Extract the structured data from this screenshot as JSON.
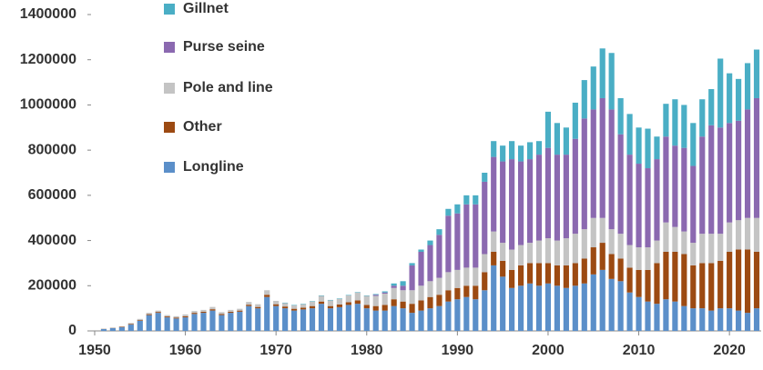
{
  "chart_data": {
    "type": "stacked_bar",
    "x": [
      1951,
      1952,
      1953,
      1954,
      1955,
      1956,
      1957,
      1958,
      1959,
      1960,
      1961,
      1962,
      1963,
      1964,
      1965,
      1966,
      1967,
      1968,
      1969,
      1970,
      1971,
      1972,
      1973,
      1974,
      1975,
      1976,
      1977,
      1978,
      1979,
      1980,
      1981,
      1982,
      1983,
      1984,
      1985,
      1986,
      1987,
      1988,
      1989,
      1990,
      1991,
      1992,
      1993,
      1994,
      1995,
      1996,
      1997,
      1998,
      1999,
      2000,
      2001,
      2002,
      2003,
      2004,
      2005,
      2006,
      2007,
      2008,
      2009,
      2010,
      2011,
      2012,
      2013,
      2014,
      2015,
      2016,
      2017,
      2018,
      2019,
      2020,
      2021,
      2022,
      2023
    ],
    "series": [
      {
        "name": "Longline",
        "color": "#5b8fc9",
        "values": [
          8000,
          12000,
          16000,
          28000,
          45000,
          70000,
          80000,
          60000,
          55000,
          60000,
          75000,
          80000,
          90000,
          70000,
          80000,
          85000,
          110000,
          100000,
          150000,
          110000,
          100000,
          90000,
          95000,
          100000,
          120000,
          100000,
          105000,
          115000,
          120000,
          100000,
          90000,
          90000,
          110000,
          100000,
          80000,
          90000,
          100000,
          110000,
          130000,
          140000,
          150000,
          140000,
          180000,
          290000,
          240000,
          190000,
          200000,
          210000,
          200000,
          210000,
          200000,
          190000,
          200000,
          210000,
          250000,
          270000,
          230000,
          220000,
          170000,
          150000,
          130000,
          120000,
          140000,
          130000,
          110000,
          100000,
          100000,
          90000,
          100000,
          100000,
          90000,
          80000,
          100000
        ]
      },
      {
        "name": "Other",
        "color": "#9c4a12",
        "values": [
          1000,
          1000,
          2000,
          3000,
          3000,
          4000,
          4000,
          4000,
          4000,
          5000,
          5000,
          5000,
          6000,
          5000,
          5000,
          5000,
          6000,
          6000,
          10000,
          8000,
          8000,
          8000,
          8000,
          10000,
          10000,
          10000,
          12000,
          12000,
          15000,
          15000,
          20000,
          25000,
          30000,
          30000,
          40000,
          45000,
          50000,
          50000,
          50000,
          50000,
          50000,
          60000,
          80000,
          60000,
          70000,
          80000,
          90000,
          90000,
          100000,
          90000,
          90000,
          100000,
          100000,
          110000,
          120000,
          120000,
          110000,
          100000,
          110000,
          120000,
          140000,
          180000,
          210000,
          220000,
          230000,
          190000,
          200000,
          210000,
          210000,
          250000,
          270000,
          280000,
          250000
        ]
      },
      {
        "name": "Pole and line",
        "color": "#c4c4c4",
        "values": [
          1000,
          2000,
          2000,
          4000,
          5000,
          6000,
          6000,
          6000,
          6000,
          8000,
          8000,
          8000,
          10000,
          8000,
          8000,
          8000,
          12000,
          12000,
          20000,
          15000,
          15000,
          15000,
          15000,
          20000,
          25000,
          25000,
          25000,
          30000,
          35000,
          40000,
          45000,
          50000,
          50000,
          50000,
          60000,
          65000,
          70000,
          75000,
          80000,
          80000,
          80000,
          80000,
          80000,
          90000,
          80000,
          90000,
          90000,
          90000,
          100000,
          110000,
          110000,
          120000,
          130000,
          130000,
          130000,
          110000,
          110000,
          110000,
          100000,
          100000,
          100000,
          100000,
          130000,
          110000,
          100000,
          100000,
          130000,
          130000,
          120000,
          130000,
          130000,
          140000,
          150000
        ]
      },
      {
        "name": "Purse seine",
        "color": "#8b69b0",
        "values": [
          0,
          0,
          0,
          0,
          0,
          0,
          0,
          0,
          0,
          0,
          0,
          0,
          0,
          0,
          0,
          0,
          0,
          0,
          0,
          0,
          0,
          0,
          0,
          0,
          0,
          0,
          0,
          0,
          0,
          0,
          5000,
          5000,
          10000,
          20000,
          110000,
          150000,
          160000,
          190000,
          250000,
          250000,
          280000,
          280000,
          320000,
          330000,
          360000,
          400000,
          370000,
          370000,
          380000,
          400000,
          380000,
          370000,
          420000,
          490000,
          480000,
          530000,
          530000,
          440000,
          400000,
          370000,
          350000,
          360000,
          380000,
          360000,
          370000,
          340000,
          430000,
          480000,
          470000,
          440000,
          440000,
          480000,
          530000
        ]
      },
      {
        "name": "Gillnet",
        "color": "#4aaec5",
        "values": [
          0,
          0,
          0,
          0,
          0,
          0,
          0,
          0,
          0,
          0,
          0,
          0,
          0,
          0,
          0,
          0,
          0,
          0,
          0,
          0,
          2000,
          2000,
          2000,
          2000,
          2000,
          2000,
          2000,
          2000,
          2000,
          2000,
          3000,
          5000,
          10000,
          20000,
          10000,
          10000,
          20000,
          25000,
          30000,
          40000,
          40000,
          40000,
          40000,
          70000,
          70000,
          80000,
          70000,
          75000,
          60000,
          160000,
          140000,
          120000,
          160000,
          170000,
          190000,
          220000,
          250000,
          160000,
          180000,
          160000,
          175000,
          100000,
          145000,
          205000,
          190000,
          190000,
          165000,
          160000,
          305000,
          220000,
          185000,
          205000,
          215000
        ]
      }
    ],
    "xlim": [
      1949.6,
      2023.5
    ],
    "xticks": [
      1950,
      1960,
      1970,
      1980,
      1990,
      2000,
      2010,
      2020
    ],
    "ylim": [
      0,
      1400000
    ],
    "yticks": [
      0,
      200000,
      400000,
      600000,
      800000,
      1000000,
      1200000,
      1400000
    ]
  }
}
